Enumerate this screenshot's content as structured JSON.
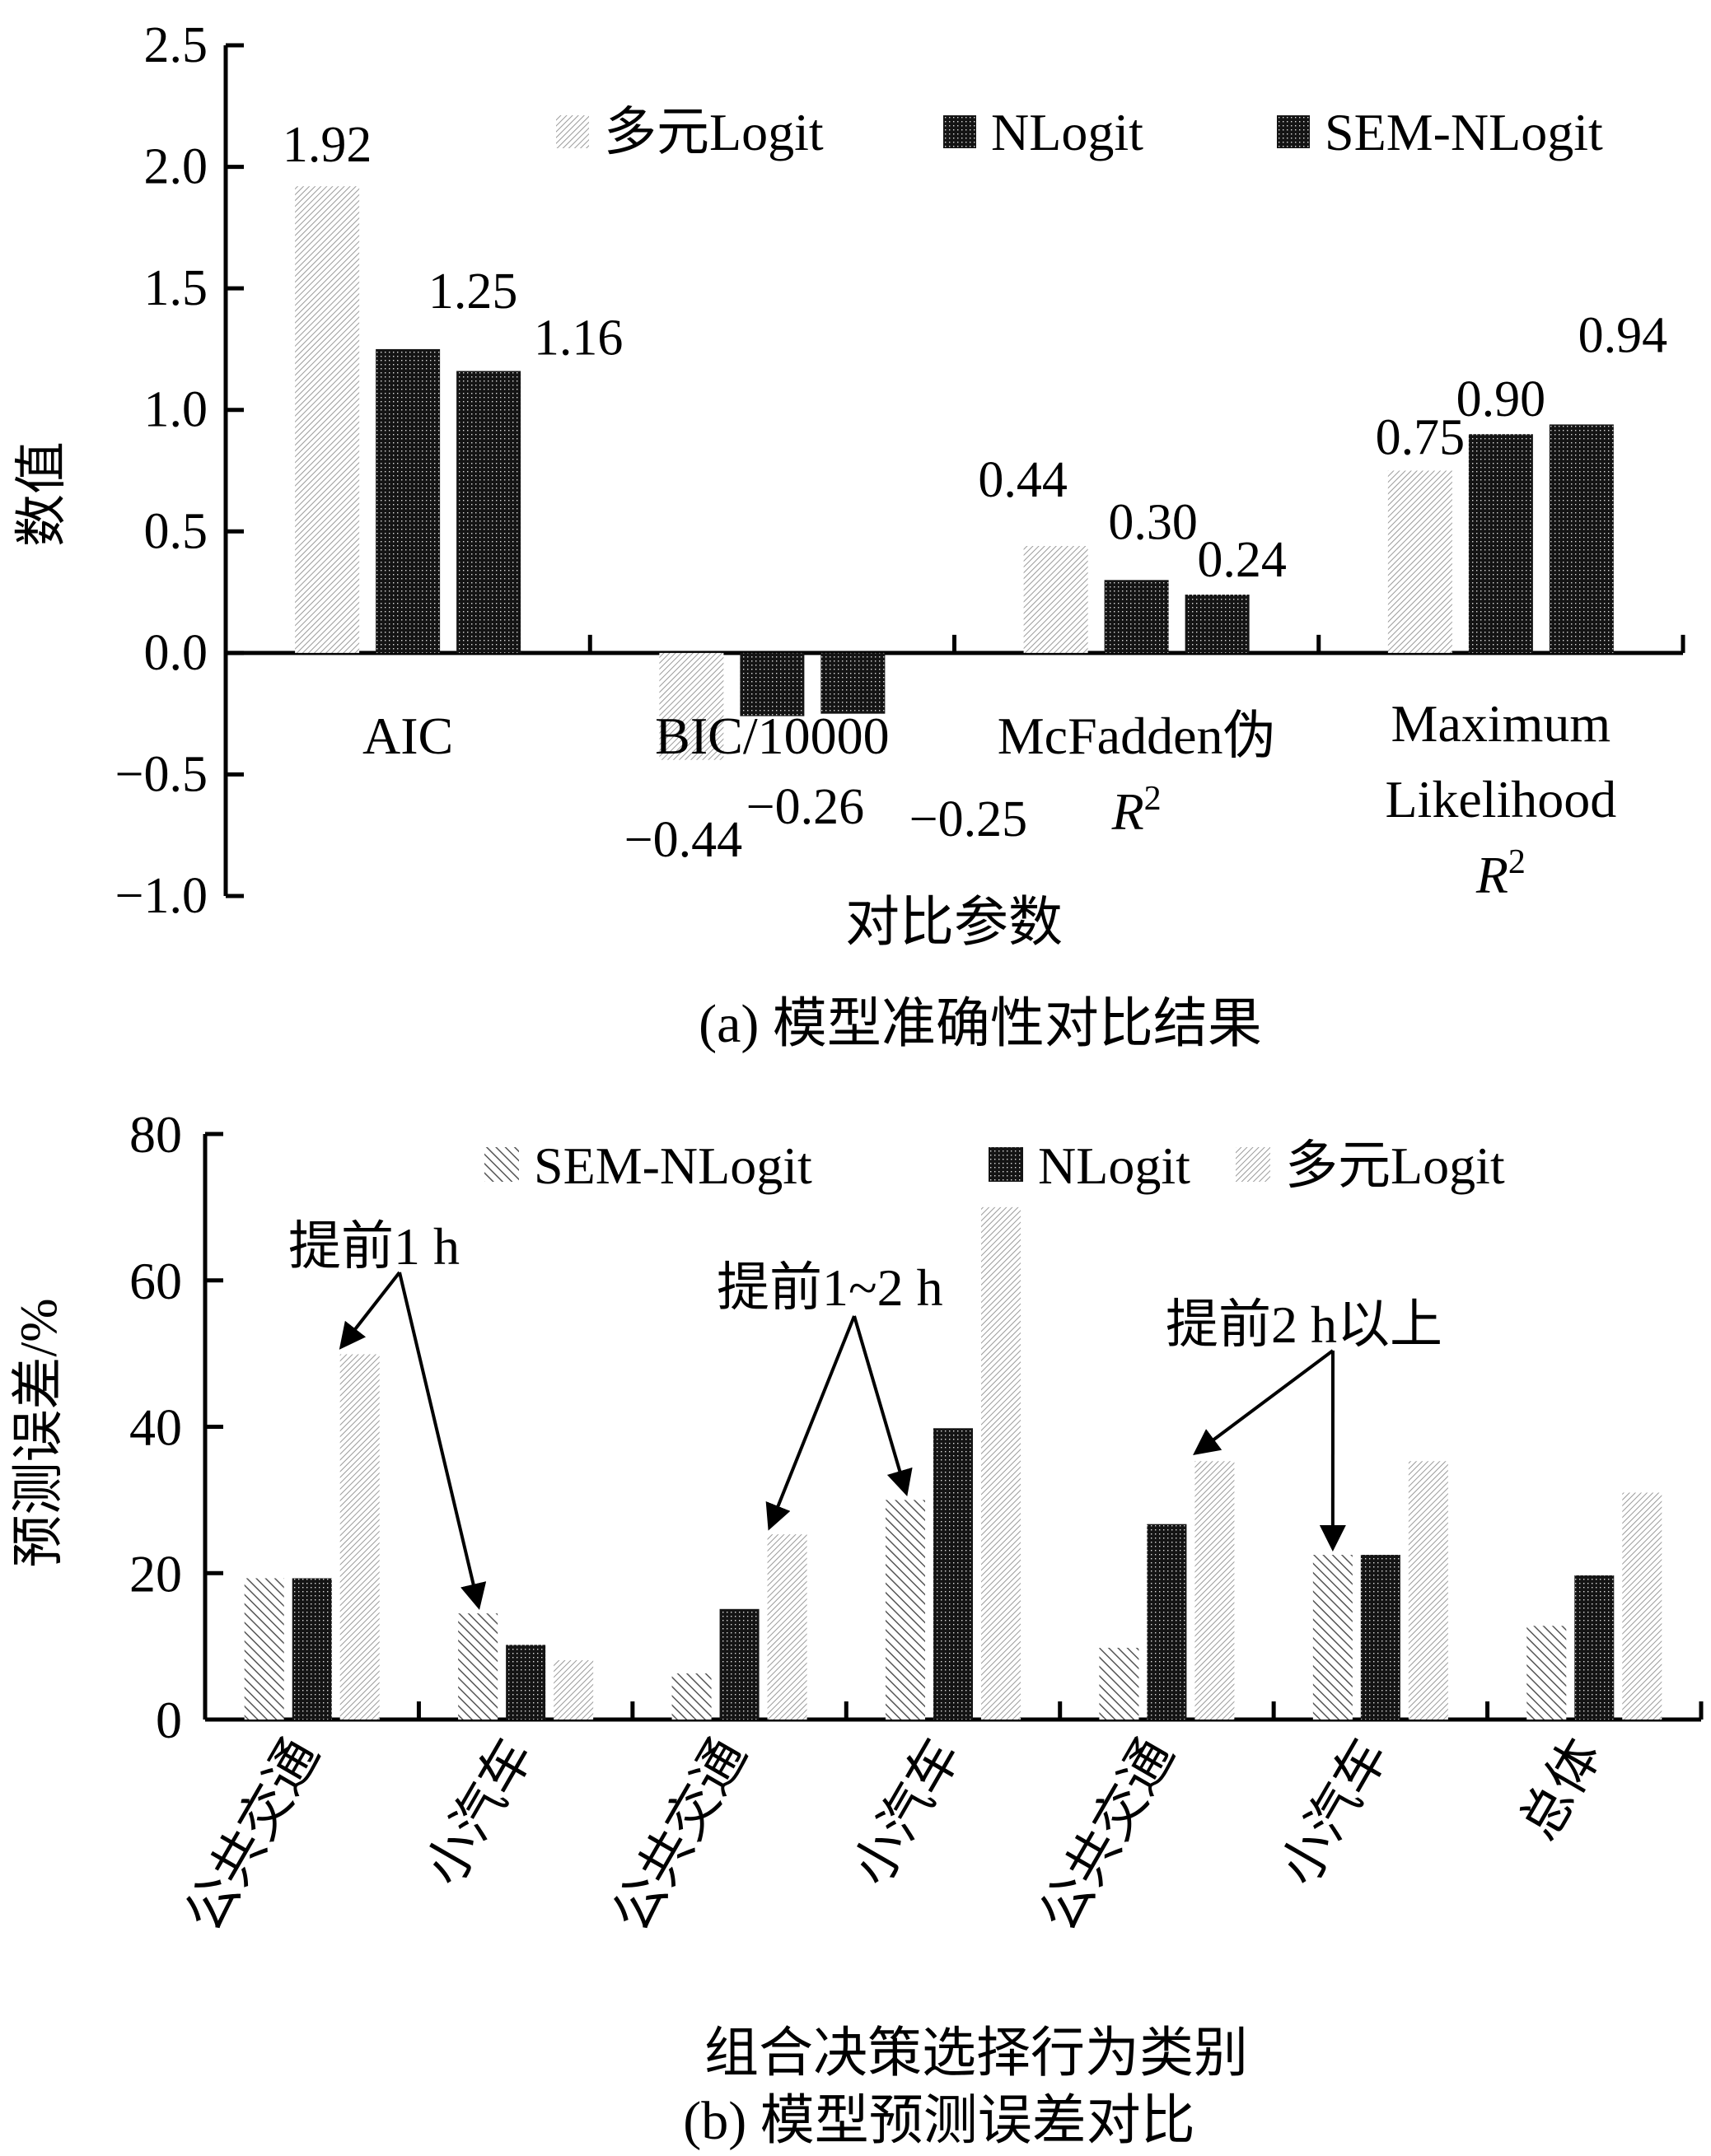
{
  "chart_data": [
    {
      "type": "bar",
      "title": "",
      "caption": "(a) 模型准确性对比结果",
      "xlabel": "对比参数",
      "ylabel": "数值",
      "ylim": [
        -1.0,
        2.5
      ],
      "yticks": [
        "2.5",
        "2.0",
        "1.5",
        "1.0",
        "0.5",
        "0.0",
        "−0.5",
        "−1.0"
      ],
      "ytick_values": [
        2.5,
        2.0,
        1.5,
        1.0,
        0.5,
        0.0,
        -0.5,
        -1.0
      ],
      "categories": [
        {
          "lines": [
            "AIC"
          ]
        },
        {
          "lines": [
            "BIC/10000"
          ]
        },
        {
          "lines": [
            "McFadden伪",
            "R²"
          ]
        },
        {
          "lines": [
            "Maximum",
            "Likelihood",
            "R²"
          ]
        }
      ],
      "series": [
        {
          "name": "多元Logit",
          "pattern": "hatch-light",
          "values": [
            1.92,
            -0.44,
            0.44,
            0.75
          ],
          "labels": [
            "1.92",
            "−0.44",
            "0.44",
            "0.75"
          ]
        },
        {
          "name": "NLogit",
          "pattern": "dots-dark",
          "values": [
            1.25,
            -0.26,
            0.3,
            0.9
          ],
          "labels": [
            "1.25",
            "−0.26",
            "0.30",
            "0.90"
          ]
        },
        {
          "name": "SEM-NLogit",
          "pattern": "dots-dark",
          "values": [
            1.16,
            -0.25,
            0.24,
            0.94
          ],
          "labels": [
            "1.16",
            "−0.25",
            "0.24",
            "0.94"
          ]
        }
      ],
      "legend": {
        "position": "top-right",
        "entries": [
          "多元Logit",
          "NLogit",
          "SEM-NLogit"
        ]
      },
      "grid": false
    },
    {
      "type": "bar",
      "title": "",
      "caption": "(b) 模型预测误差对比",
      "xlabel": "组合决策选择行为类别",
      "ylabel": "预测误差/%",
      "ylim": [
        0,
        80
      ],
      "yticks": [
        "80",
        "60",
        "40",
        "20",
        "0"
      ],
      "ytick_values": [
        80,
        60,
        40,
        20,
        0
      ],
      "categories": [
        "公共交通",
        "小汽车",
        "公共交通",
        "小汽车",
        "公共交通",
        "小汽车",
        "总体"
      ],
      "series": [
        {
          "name": "SEM-NLogit",
          "pattern": "hatch-diag",
          "values": [
            19.3,
            14.5,
            6.3,
            30.0,
            9.8,
            22.5,
            12.8
          ]
        },
        {
          "name": "NLogit",
          "pattern": "dots-dark",
          "values": [
            19.3,
            10.2,
            15.1,
            39.8,
            26.7,
            22.5,
            19.7
          ]
        },
        {
          "name": "多元Logit",
          "pattern": "hatch-light",
          "values": [
            49.9,
            8.1,
            25.3,
            70.0,
            35.3,
            35.3,
            31.0
          ]
        }
      ],
      "legend": {
        "position": "top-right",
        "entries": [
          "SEM-NLogit",
          "NLogit",
          "多元Logit"
        ]
      },
      "annotations": [
        {
          "text": "提前1 h",
          "targets": [
            {
              "category": 0,
              "series": 2
            },
            {
              "category": 1,
              "series": 0
            }
          ]
        },
        {
          "text": "提前1~2 h",
          "targets": [
            {
              "category": 2,
              "series": 2
            },
            {
              "category": 3,
              "series": 0
            }
          ]
        },
        {
          "text": "提前2 h以上",
          "targets": [
            {
              "category": 4,
              "series": 2
            },
            {
              "category": 5,
              "series": 0
            }
          ]
        }
      ],
      "grid": false
    }
  ]
}
